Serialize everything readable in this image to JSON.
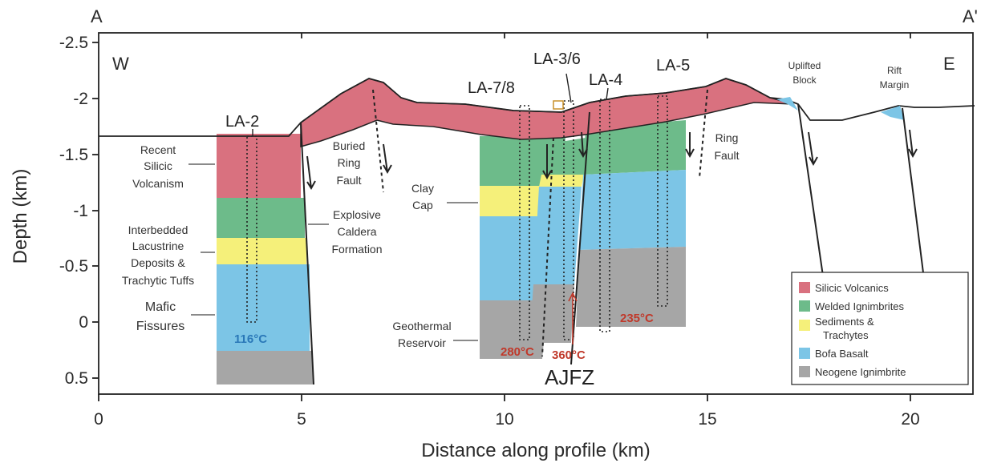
{
  "corner_labels": {
    "left": "A",
    "right": "A'",
    "west": "W",
    "east": "E"
  },
  "axes": {
    "xlabel": "Distance along profile (km)",
    "ylabel": "Depth (km)",
    "x_ticks": [
      "0",
      "5",
      "10",
      "15",
      "20"
    ],
    "y_ticks": [
      "-2.5",
      "-2",
      "-1.5",
      "-1",
      "-0.5",
      "0",
      "0.5"
    ],
    "xlim": [
      0,
      21.8
    ],
    "ylim": [
      -2.5,
      0.6
    ]
  },
  "wells": [
    "LA-2",
    "LA-7/8",
    "LA-3/6",
    "LA-4",
    "LA-5"
  ],
  "temperatures": {
    "la2": "116°C",
    "la78": "280°C",
    "la36": "360°C",
    "la5": "235°C"
  },
  "fault_label": "AJFZ",
  "annotations": {
    "recent_silicic": [
      "Recent",
      "Silicic",
      "Volcanism"
    ],
    "interbedded": [
      "Interbedded",
      "Lacustrine",
      "Deposits &",
      "Trachytic Tuffs"
    ],
    "mafic": [
      "Mafic",
      "Fissures"
    ],
    "buried_ring": [
      "Buried",
      "Ring",
      "Fault"
    ],
    "explosive": [
      "Explosive",
      "Caldera",
      "Formation"
    ],
    "clay_cap": [
      "Clay",
      "Cap"
    ],
    "geothermal": [
      "Geothermal",
      "Reservoir"
    ],
    "ring_fault": [
      "Ring",
      "Fault"
    ],
    "uplifted": [
      "Uplifted",
      "Block"
    ],
    "rift": [
      "Rift",
      "Margin"
    ]
  },
  "legend": [
    {
      "label": "Silicic Volcanics",
      "color": "#d9717f"
    },
    {
      "label": "Welded Ignimbrites",
      "color": "#6dbb8a"
    },
    {
      "label": "Sediments &",
      "label2": "Trachytes",
      "color": "#f5f07a"
    },
    {
      "label": "Bofa Basalt",
      "color": "#7cc5e6"
    },
    {
      "label": "Neogene Ignimbrite",
      "color": "#a6a6a6"
    }
  ],
  "colors": {
    "silicic": "#d9717f",
    "welded": "#6dbb8a",
    "sediments": "#f5f07a",
    "basalt": "#7cc5e6",
    "neogene": "#a6a6a6",
    "temperature": "#c0392b"
  }
}
